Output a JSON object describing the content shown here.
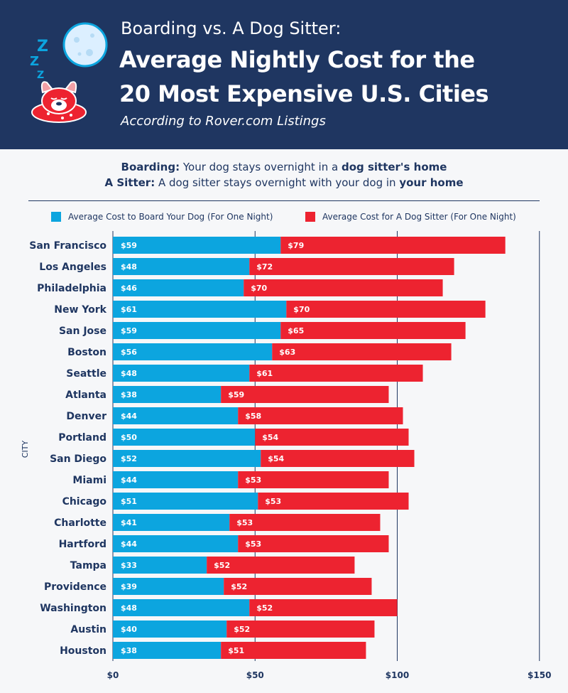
{
  "header": {
    "subtitle": "Boarding vs. A Dog Sitter:",
    "title_line1": "Average Nightly Cost for the",
    "title_line2": "20 Most Expensive U.S. Cities",
    "source": "According to Rover.com Listings"
  },
  "definitions": {
    "boarding_term": "Boarding:",
    "boarding_text": "Your dog stays overnight in a",
    "boarding_place": "dog sitter's home",
    "sitter_term": "A Sitter:",
    "sitter_text": "A dog sitter stays overnight with your dog in",
    "sitter_place": "your home"
  },
  "colors": {
    "header_bg": "#1f3661",
    "boarding": "#0ca5df",
    "sitter": "#ed2330",
    "text": "#1f3661"
  },
  "chart_data": {
    "type": "bar",
    "orientation": "horizontal",
    "stacked": true,
    "categories": [
      "San Francisco",
      "Los Angeles",
      "Philadelphia",
      "New York",
      "San Jose",
      "Boston",
      "Seattle",
      "Atlanta",
      "Denver",
      "Portland",
      "San Diego",
      "Miami",
      "Chicago",
      "Charlotte",
      "Hartford",
      "Tampa",
      "Providence",
      "Washington",
      "Austin",
      "Houston"
    ],
    "series": [
      {
        "name": "Average Cost to Board Your Dog (For One Night)",
        "values": [
          59,
          48,
          46,
          61,
          59,
          56,
          48,
          38,
          44,
          50,
          52,
          44,
          51,
          41,
          44,
          33,
          39,
          48,
          40,
          38
        ]
      },
      {
        "name": "Average Cost for A Dog Sitter (For One Night)",
        "values": [
          79,
          72,
          70,
          70,
          65,
          63,
          61,
          59,
          58,
          54,
          54,
          53,
          53,
          53,
          53,
          52,
          52,
          52,
          52,
          51
        ]
      }
    ],
    "ylabel": "CITY",
    "xlim": [
      0,
      150
    ],
    "xticks": [
      0,
      50,
      100,
      150
    ],
    "xtick_labels": [
      "$0",
      "$50",
      "$100",
      "$150"
    ],
    "value_prefix": "$",
    "legend_position": "top",
    "grid": "vertical"
  }
}
